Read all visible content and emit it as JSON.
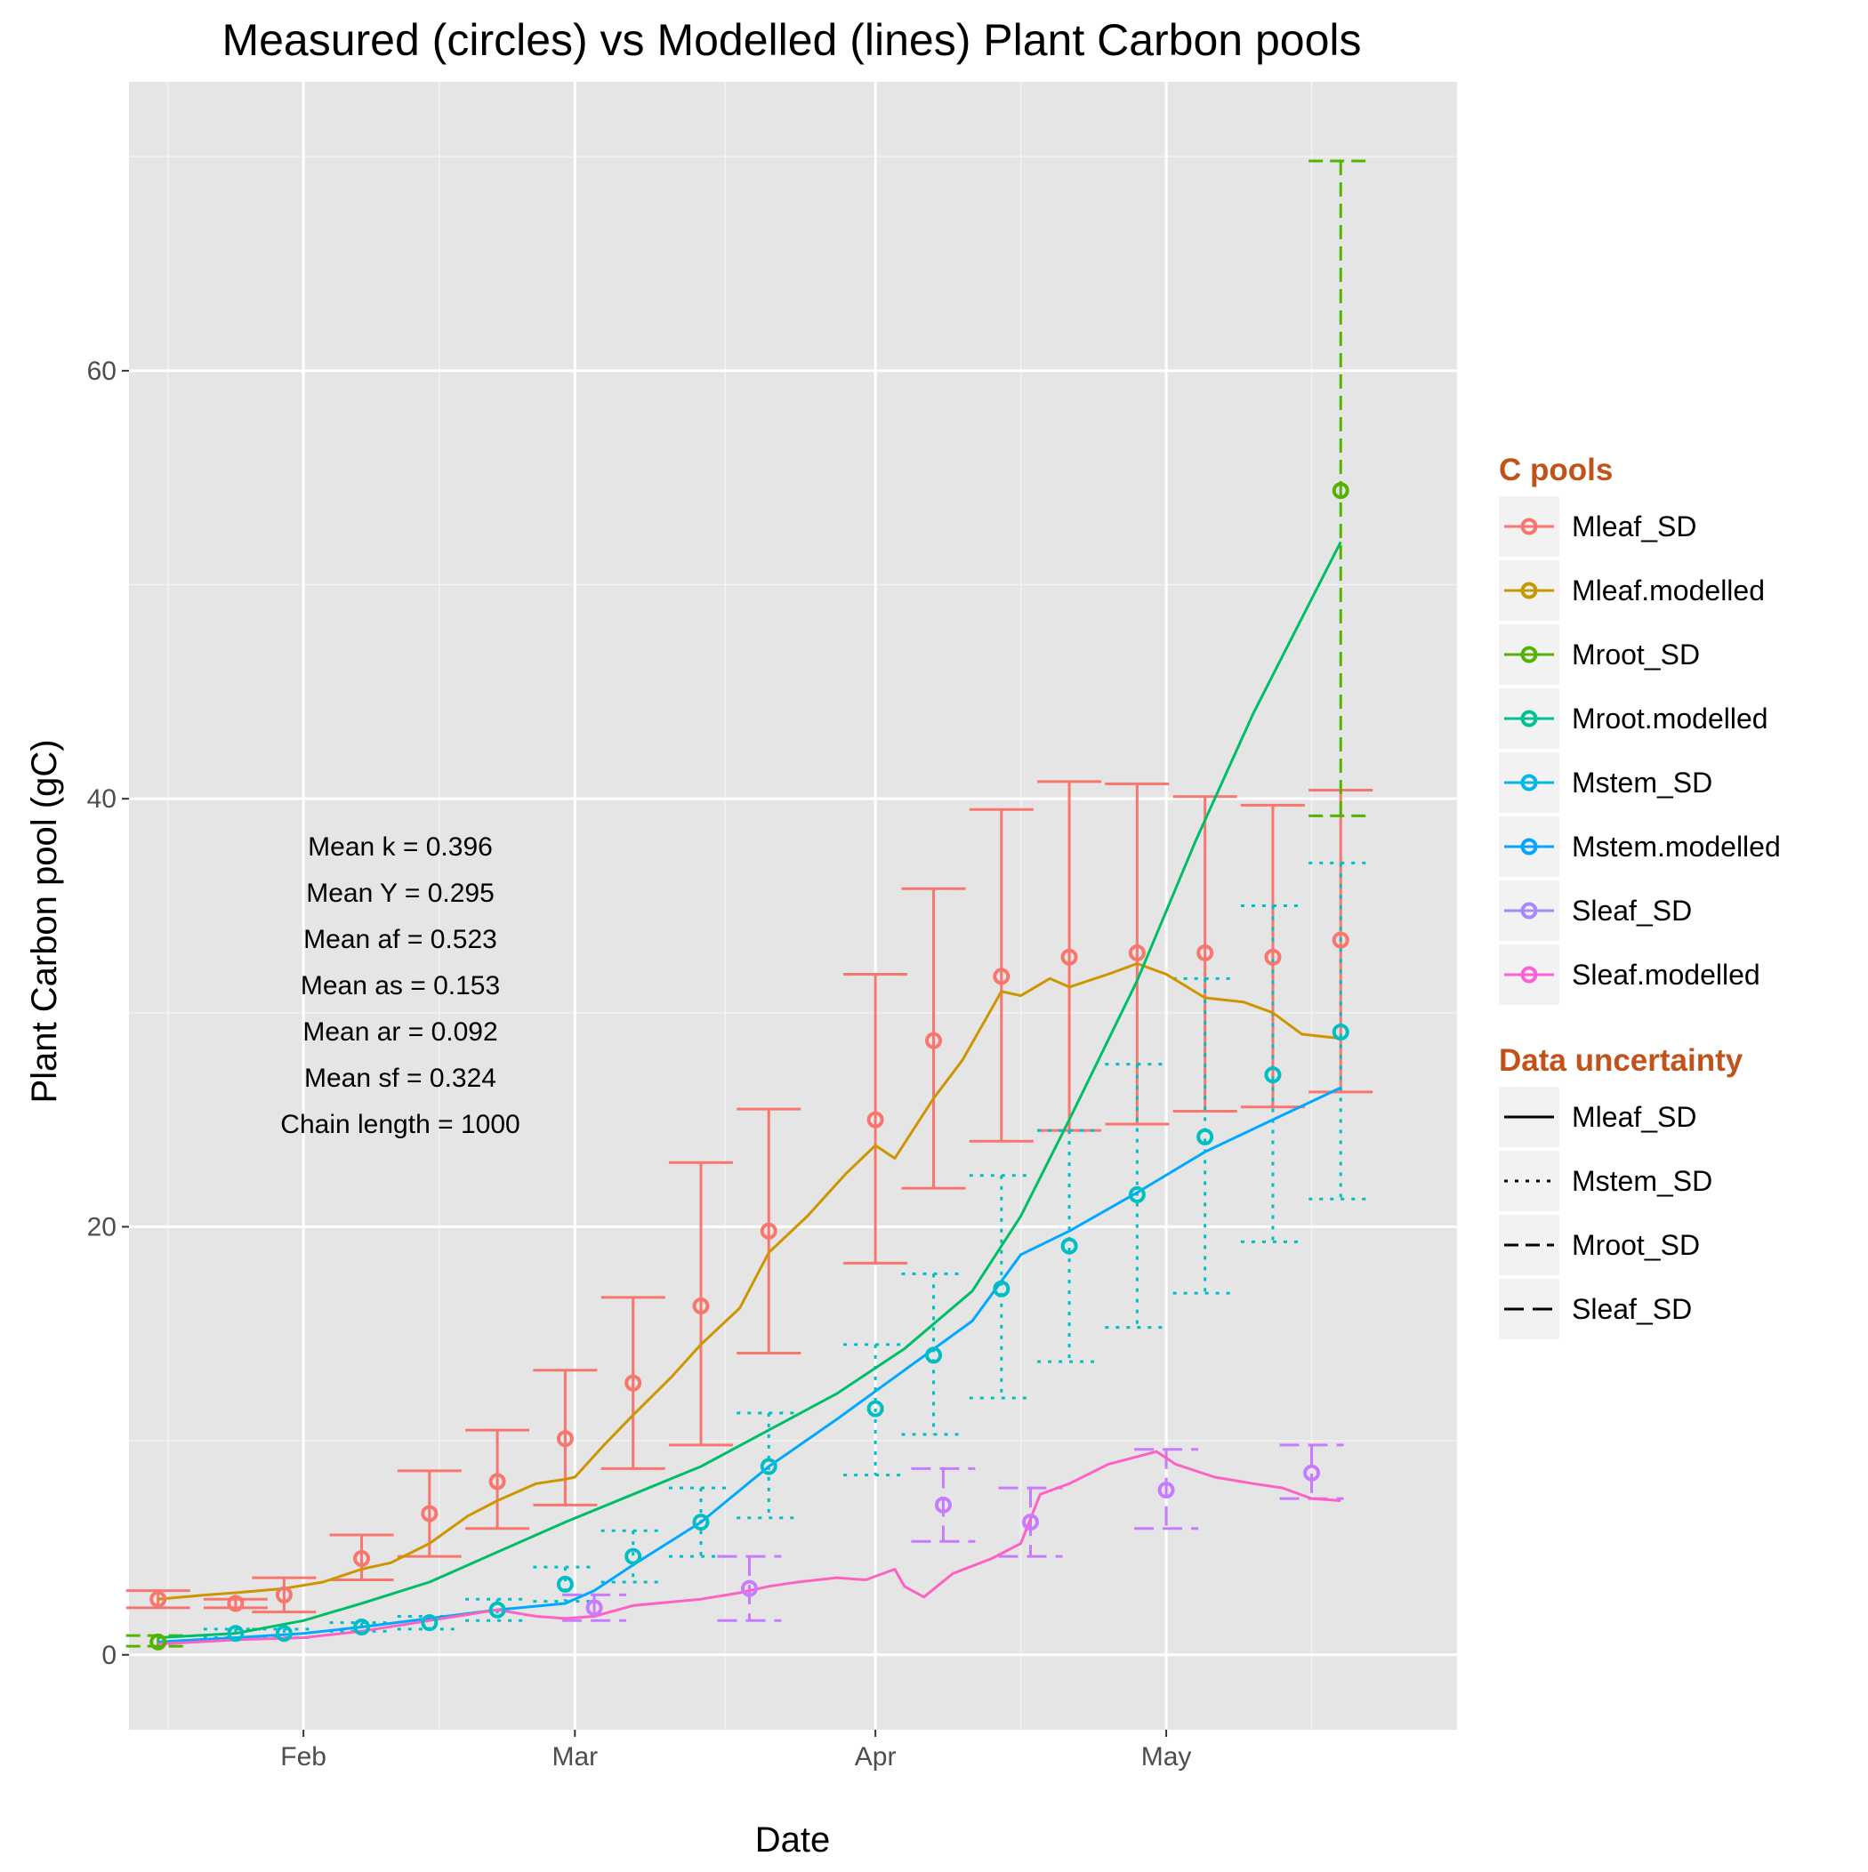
{
  "chart_data": {
    "type": "line",
    "title": "Measured (circles) vs Modelled (lines) Plant Carbon pools",
    "xlabel": "Date",
    "ylabel": "Plant Carbon pool (gC)",
    "x_range": [
      "2015-01-14",
      "2015-05-31"
    ],
    "ylim": [
      -3.5,
      73.5
    ],
    "x_ticks": [
      {
        "label": "Feb",
        "date": "2015-02-01"
      },
      {
        "label": "Mar",
        "date": "2015-03-01"
      },
      {
        "label": "Apr",
        "date": "2015-04-01"
      },
      {
        "label": "May",
        "date": "2015-05-01"
      }
    ],
    "y_ticks": [
      0,
      20,
      40,
      60
    ],
    "grid": true,
    "background": "#e5e5e5",
    "legend_placement": "right",
    "legends": [
      {
        "title": "C pools",
        "entries": [
          {
            "label": "Mleaf_SD",
            "color": "#f8766d"
          },
          {
            "label": "Mleaf.modelled",
            "color": "#c49a00"
          },
          {
            "label": "Mroot_SD",
            "color": "#53b400"
          },
          {
            "label": "Mroot.modelled",
            "color": "#00c094"
          },
          {
            "label": "Mstem_SD",
            "color": "#00b6eb"
          },
          {
            "label": "Mstem.modelled",
            "color": "#06a4ff"
          },
          {
            "label": "Sleaf_SD",
            "color": "#a58aff"
          },
          {
            "label": "Sleaf.modelled",
            "color": "#fb61d7"
          }
        ]
      },
      {
        "title": "Data uncertainty",
        "entries": [
          {
            "label": "Mleaf_SD",
            "linetype": "solid"
          },
          {
            "label": "Mstem_SD",
            "linetype": "dotted"
          },
          {
            "label": "Mroot_SD",
            "linetype": "dashed"
          },
          {
            "label": "Sleaf_SD",
            "linetype": "longdash"
          }
        ]
      }
    ],
    "annotations": [
      "Mean k =  0.396",
      "Mean Y =  0.295",
      "Mean af =  0.523",
      "Mean as =  0.153",
      "Mean ar =  0.092",
      "Mean sf =  0.324",
      "Chain length =  1000"
    ],
    "measured": [
      {
        "name": "Mleaf_SD",
        "color": "#f8766d",
        "linetype": "solid",
        "points": [
          {
            "date": "2015-01-17",
            "y": 2.6,
            "lo": 2.2,
            "hi": 3.0
          },
          {
            "date": "2015-01-25",
            "y": 2.4,
            "lo": 2.2,
            "hi": 2.6
          },
          {
            "date": "2015-01-30",
            "y": 2.8,
            "lo": 2.0,
            "hi": 3.6
          },
          {
            "date": "2015-02-07",
            "y": 4.5,
            "lo": 3.5,
            "hi": 5.6
          },
          {
            "date": "2015-02-14",
            "y": 6.6,
            "lo": 4.6,
            "hi": 8.6
          },
          {
            "date": "2015-02-21",
            "y": 8.1,
            "lo": 5.9,
            "hi": 10.5
          },
          {
            "date": "2015-02-28",
            "y": 10.1,
            "lo": 7.0,
            "hi": 13.3
          },
          {
            "date": "2015-03-07",
            "y": 12.7,
            "lo": 8.7,
            "hi": 16.7
          },
          {
            "date": "2015-03-14",
            "y": 16.3,
            "lo": 9.8,
            "hi": 23.0
          },
          {
            "date": "2015-03-21",
            "y": 19.8,
            "lo": 14.1,
            "hi": 25.5
          },
          {
            "date": "2015-04-01",
            "y": 25.0,
            "lo": 18.3,
            "hi": 31.8
          },
          {
            "date": "2015-04-07",
            "y": 28.7,
            "lo": 21.8,
            "hi": 35.8
          },
          {
            "date": "2015-04-14",
            "y": 31.7,
            "lo": 24.0,
            "hi": 39.5
          },
          {
            "date": "2015-04-21",
            "y": 32.6,
            "lo": 24.5,
            "hi": 40.8
          },
          {
            "date": "2015-04-28",
            "y": 32.8,
            "lo": 24.8,
            "hi": 40.7
          },
          {
            "date": "2015-05-05",
            "y": 32.8,
            "lo": 25.4,
            "hi": 40.1
          },
          {
            "date": "2015-05-12",
            "y": 32.6,
            "lo": 25.6,
            "hi": 39.7
          },
          {
            "date": "2015-05-19",
            "y": 33.4,
            "lo": 26.3,
            "hi": 40.4
          }
        ]
      },
      {
        "name": "Mroot_SD",
        "color": "#53b400",
        "linetype": "dashed",
        "points": [
          {
            "date": "2015-01-17",
            "y": 0.6,
            "lo": 0.4,
            "hi": 0.9
          },
          {
            "date": "2015-05-19",
            "y": 54.4,
            "lo": 39.2,
            "hi": 69.8
          }
        ]
      },
      {
        "name": "Mstem_SD",
        "color": "#00bfc4",
        "linetype": "dotted",
        "points": [
          {
            "date": "2015-01-25",
            "y": 1.0,
            "lo": 0.8,
            "hi": 1.2
          },
          {
            "date": "2015-01-30",
            "y": 1.0,
            "lo": 0.8,
            "hi": 1.2
          },
          {
            "date": "2015-02-07",
            "y": 1.3,
            "lo": 1.1,
            "hi": 1.5
          },
          {
            "date": "2015-02-14",
            "y": 1.5,
            "lo": 1.2,
            "hi": 1.8
          },
          {
            "date": "2015-02-21",
            "y": 2.1,
            "lo": 1.6,
            "hi": 2.6
          },
          {
            "date": "2015-02-28",
            "y": 3.3,
            "lo": 2.5,
            "hi": 4.1
          },
          {
            "date": "2015-03-07",
            "y": 4.6,
            "lo": 3.4,
            "hi": 5.8
          },
          {
            "date": "2015-03-14",
            "y": 6.2,
            "lo": 4.6,
            "hi": 7.8
          },
          {
            "date": "2015-03-21",
            "y": 8.8,
            "lo": 6.4,
            "hi": 11.3
          },
          {
            "date": "2015-04-01",
            "y": 11.5,
            "lo": 8.4,
            "hi": 14.5
          },
          {
            "date": "2015-04-07",
            "y": 14.0,
            "lo": 10.3,
            "hi": 17.8
          },
          {
            "date": "2015-04-14",
            "y": 17.1,
            "lo": 12.0,
            "hi": 22.4
          },
          {
            "date": "2015-04-21",
            "y": 19.1,
            "lo": 13.7,
            "hi": 24.5
          },
          {
            "date": "2015-04-28",
            "y": 21.5,
            "lo": 15.3,
            "hi": 27.6
          },
          {
            "date": "2015-05-05",
            "y": 24.2,
            "lo": 16.9,
            "hi": 31.6
          },
          {
            "date": "2015-05-12",
            "y": 27.1,
            "lo": 19.3,
            "hi": 35.0
          },
          {
            "date": "2015-05-19",
            "y": 29.1,
            "lo": 21.3,
            "hi": 37.0
          }
        ]
      },
      {
        "name": "Sleaf_SD",
        "color": "#c77cff",
        "linetype": "longdash",
        "points": [
          {
            "date": "2015-03-03",
            "y": 2.2,
            "lo": 1.6,
            "hi": 2.8
          },
          {
            "date": "2015-03-19",
            "y": 3.1,
            "lo": 1.6,
            "hi": 4.6
          },
          {
            "date": "2015-04-08",
            "y": 7.0,
            "lo": 5.3,
            "hi": 8.7
          },
          {
            "date": "2015-04-17",
            "y": 6.2,
            "lo": 4.6,
            "hi": 7.8
          },
          {
            "date": "2015-05-01",
            "y": 7.7,
            "lo": 5.9,
            "hi": 9.6
          },
          {
            "date": "2015-05-16",
            "y": 8.5,
            "lo": 7.3,
            "hi": 9.8
          }
        ]
      }
    ],
    "modelled": [
      {
        "name": "Mleaf.modelled",
        "color": "#cd9600",
        "points": [
          [
            "2015-01-17",
            2.6
          ],
          [
            "2015-01-22",
            2.8
          ],
          [
            "2015-01-25",
            2.9
          ],
          [
            "2015-01-30",
            3.1
          ],
          [
            "2015-02-03",
            3.4
          ],
          [
            "2015-02-07",
            4.0
          ],
          [
            "2015-02-10",
            4.3
          ],
          [
            "2015-02-14",
            5.2
          ],
          [
            "2015-02-18",
            6.5
          ],
          [
            "2015-02-21",
            7.2
          ],
          [
            "2015-02-25",
            8.0
          ],
          [
            "2015-02-28",
            8.2
          ],
          [
            "2015-03-01",
            8.3
          ],
          [
            "2015-03-04",
            9.8
          ],
          [
            "2015-03-07",
            11.2
          ],
          [
            "2015-03-11",
            13.0
          ],
          [
            "2015-03-14",
            14.5
          ],
          [
            "2015-03-18",
            16.2
          ],
          [
            "2015-03-21",
            18.8
          ],
          [
            "2015-03-25",
            20.5
          ],
          [
            "2015-03-29",
            22.5
          ],
          [
            "2015-04-01",
            23.8
          ],
          [
            "2015-04-03",
            23.2
          ],
          [
            "2015-04-07",
            26.0
          ],
          [
            "2015-04-10",
            27.8
          ],
          [
            "2015-04-14",
            31.0
          ],
          [
            "2015-04-16",
            30.8
          ],
          [
            "2015-04-19",
            31.6
          ],
          [
            "2015-04-21",
            31.2
          ],
          [
            "2015-04-25",
            31.8
          ],
          [
            "2015-04-28",
            32.3
          ],
          [
            "2015-05-01",
            31.8
          ],
          [
            "2015-05-05",
            30.7
          ],
          [
            "2015-05-09",
            30.5
          ],
          [
            "2015-05-12",
            30.0
          ],
          [
            "2015-05-15",
            29.0
          ],
          [
            "2015-05-19",
            28.8
          ]
        ]
      },
      {
        "name": "Mroot.modelled",
        "color": "#00be67",
        "points": [
          [
            "2015-01-17",
            0.8
          ],
          [
            "2015-01-25",
            1.0
          ],
          [
            "2015-02-01",
            1.6
          ],
          [
            "2015-02-07",
            2.4
          ],
          [
            "2015-02-14",
            3.4
          ],
          [
            "2015-02-21",
            4.8
          ],
          [
            "2015-02-28",
            6.2
          ],
          [
            "2015-03-07",
            7.5
          ],
          [
            "2015-03-14",
            8.8
          ],
          [
            "2015-03-21",
            10.5
          ],
          [
            "2015-03-28",
            12.2
          ],
          [
            "2015-04-04",
            14.3
          ],
          [
            "2015-04-11",
            17.0
          ],
          [
            "2015-04-16",
            20.5
          ],
          [
            "2015-04-21",
            25.0
          ],
          [
            "2015-04-28",
            31.5
          ],
          [
            "2015-05-04",
            38.0
          ],
          [
            "2015-05-10",
            44.0
          ],
          [
            "2015-05-19",
            52.0
          ]
        ]
      },
      {
        "name": "Mstem.modelled",
        "color": "#00a9ff",
        "points": [
          [
            "2015-01-17",
            0.6
          ],
          [
            "2015-01-25",
            0.8
          ],
          [
            "2015-02-01",
            1.0
          ],
          [
            "2015-02-07",
            1.3
          ],
          [
            "2015-02-14",
            1.7
          ],
          [
            "2015-02-21",
            2.1
          ],
          [
            "2015-02-28",
            2.4
          ],
          [
            "2015-03-03",
            3.0
          ],
          [
            "2015-03-07",
            4.2
          ],
          [
            "2015-03-14",
            6.2
          ],
          [
            "2015-03-21",
            8.8
          ],
          [
            "2015-03-28",
            11.0
          ],
          [
            "2015-04-04",
            13.3
          ],
          [
            "2015-04-11",
            15.6
          ],
          [
            "2015-04-16",
            18.7
          ],
          [
            "2015-04-21",
            19.8
          ],
          [
            "2015-04-28",
            21.6
          ],
          [
            "2015-05-05",
            23.5
          ],
          [
            "2015-05-12",
            25.0
          ],
          [
            "2015-05-19",
            26.5
          ]
        ]
      },
      {
        "name": "Sleaf.modelled",
        "color": "#ff61c3",
        "points": [
          [
            "2015-01-17",
            0.5
          ],
          [
            "2015-01-25",
            0.7
          ],
          [
            "2015-02-01",
            0.8
          ],
          [
            "2015-02-07",
            1.1
          ],
          [
            "2015-02-14",
            1.6
          ],
          [
            "2015-02-21",
            2.1
          ],
          [
            "2015-02-25",
            1.8
          ],
          [
            "2015-02-28",
            1.7
          ],
          [
            "2015-03-03",
            1.8
          ],
          [
            "2015-03-07",
            2.3
          ],
          [
            "2015-03-14",
            2.6
          ],
          [
            "2015-03-18",
            2.9
          ],
          [
            "2015-03-21",
            3.2
          ],
          [
            "2015-03-24",
            3.4
          ],
          [
            "2015-03-28",
            3.6
          ],
          [
            "2015-03-31",
            3.5
          ],
          [
            "2015-04-03",
            4.0
          ],
          [
            "2015-04-04",
            3.2
          ],
          [
            "2015-04-06",
            2.7
          ],
          [
            "2015-04-09",
            3.8
          ],
          [
            "2015-04-13",
            4.5
          ],
          [
            "2015-04-16",
            5.2
          ],
          [
            "2015-04-18",
            7.5
          ],
          [
            "2015-04-21",
            8.0
          ],
          [
            "2015-04-25",
            8.9
          ],
          [
            "2015-04-30",
            9.5
          ],
          [
            "2015-05-02",
            8.9
          ],
          [
            "2015-05-06",
            8.3
          ],
          [
            "2015-05-10",
            8.0
          ],
          [
            "2015-05-13",
            7.8
          ],
          [
            "2015-05-16",
            7.3
          ],
          [
            "2015-05-19",
            7.2
          ]
        ]
      }
    ]
  }
}
